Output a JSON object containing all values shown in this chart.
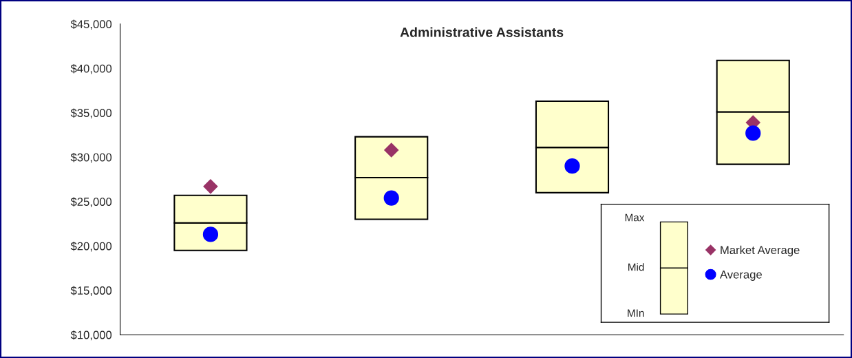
{
  "chart_data": {
    "type": "bar",
    "title": "Administrative Assistants",
    "categories": [
      null,
      null,
      null,
      null
    ],
    "series": [
      {
        "color": "#ffffcc",
        "base": [
          19500,
          23000,
          26000,
          29200
        ],
        "values": [
          3100,
          4700,
          5100,
          5900
        ]
      },
      {
        "color": "#ffffcc",
        "base": [
          22600,
          27700,
          31100,
          35100
        ],
        "values": [
          3100,
          4600,
          5200,
          5800
        ]
      },
      {
        "type": "scatter",
        "name": "Market Average",
        "color": "#993366",
        "marker": "diamond",
        "values": [
          26700,
          30800,
          null,
          33900
        ]
      },
      {
        "type": "scatter",
        "name": "Average",
        "color": "#0000ff",
        "marker": "circle",
        "values": [
          21300,
          25400,
          29000,
          32700
        ]
      }
    ],
    "annotations": [
      "Max",
      "Mid",
      "MIn"
    ],
    "ylim": [
      10000,
      45000
    ],
    "yticks": [
      {
        "value": 10000,
        "label": "$10,000"
      },
      {
        "value": 15000,
        "label": "$15,000"
      },
      {
        "value": 20000,
        "label": "$20,000"
      },
      {
        "value": 25000,
        "label": "$25,000"
      },
      {
        "value": 30000,
        "label": "$30,000"
      },
      {
        "value": 35000,
        "label": "$35,000"
      },
      {
        "value": 40000,
        "label": "$40,000"
      },
      {
        "value": 45000,
        "label": "$45,000"
      }
    ],
    "legend": "bottom right",
    "grid": false
  }
}
